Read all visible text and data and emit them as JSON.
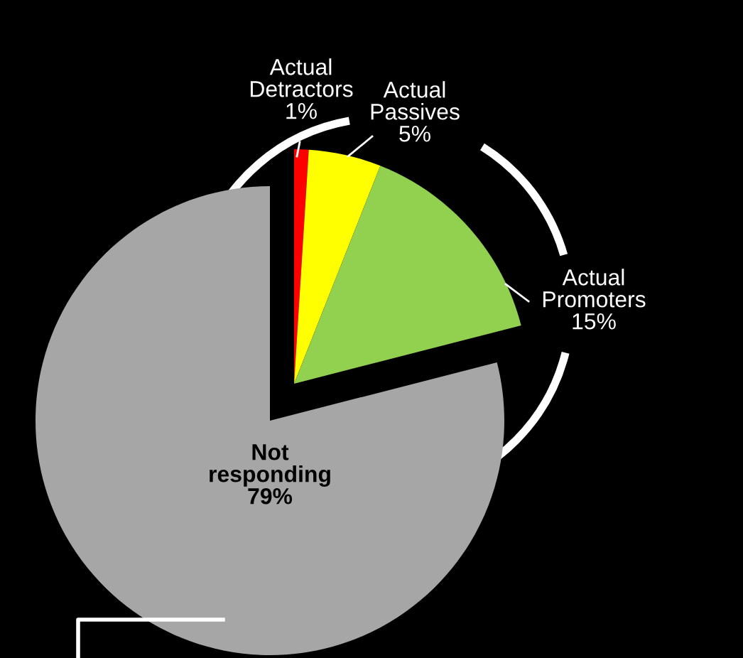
{
  "chart_data": {
    "type": "pie",
    "categories": [
      "Actual Detractors",
      "Actual Passives",
      "Actual Promoters",
      "Not responding"
    ],
    "values": [
      1,
      5,
      15,
      79
    ],
    "colors": [
      "#ff0000",
      "#ffff00",
      "#92d050",
      "#a6a6a6"
    ],
    "value_labels": [
      "1%",
      "5%",
      "15%",
      "79%"
    ]
  }
}
